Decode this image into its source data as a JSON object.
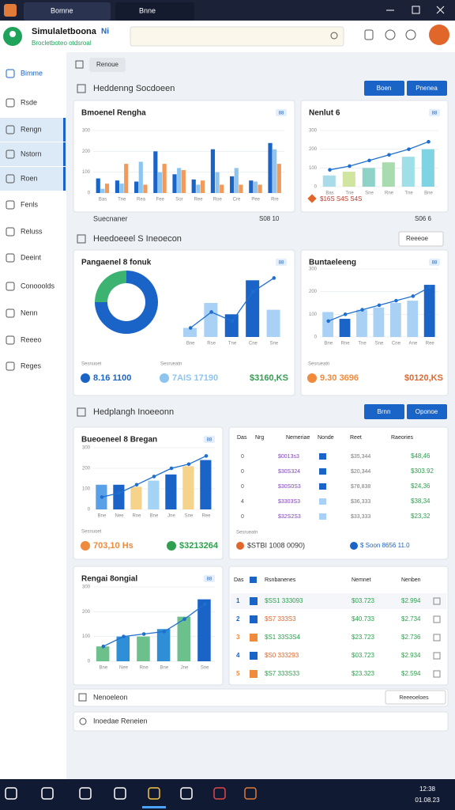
{
  "window": {
    "tabs": [
      "Bomne",
      "Bnne"
    ],
    "clock": "12:38",
    "date": "01.08.23"
  },
  "header": {
    "title": "Simulaletboona",
    "badge": "Ni",
    "subtitle": "Brocletboteo otdsroal"
  },
  "sidebar": {
    "items": [
      "Bimme",
      "Rsde",
      "Rengn",
      "Nstorn",
      "Roen",
      "Fenls",
      "Reluss",
      "Deeint",
      "Conooolds",
      "Nenn",
      "Reeeo",
      "Reges"
    ],
    "active": [
      2,
      3,
      4
    ]
  },
  "toolbar": {
    "chip": "Renoue"
  },
  "sections": [
    {
      "title": "Heddenng Socdoeen",
      "buttons": [
        "Boen",
        "Pnenea"
      ]
    },
    {
      "title": "Heedoeeel S Ineoecon",
      "dropdown": "Reeeoe"
    },
    {
      "title": "Hedplangh Inoeeonn",
      "buttons": [
        "Brnn",
        "Oponoe"
      ]
    }
  ],
  "summary_row": {
    "label": "Suecnaner",
    "mid": "S08 10",
    "right": "S06 6"
  },
  "cards": [
    {
      "title": "Bmoenel Rengha",
      "chip": "88",
      "chart": {
        "categories": [
          "Bas",
          "Tne",
          "Rea",
          "Fee",
          "Sor",
          "Ree",
          "Roe",
          "Cre",
          "Pee",
          "Rre"
        ],
        "ylim": [
          0,
          300
        ],
        "yticks": [
          0,
          100,
          200,
          300
        ],
        "series": [
          {
            "color": "#1a63c7",
            "values": [
              70,
              60,
              55,
              200,
              90,
              65,
              210,
              80,
              60,
              240
            ]
          },
          {
            "color": "#8ec5ef",
            "values": [
              20,
              45,
              150,
              100,
              120,
              40,
              100,
              120,
              55,
              210
            ]
          },
          {
            "color": "#f19a5a",
            "values": [
              45,
              140,
              40,
              140,
              110,
              60,
              40,
              40,
              40,
              140
            ]
          }
        ]
      }
    },
    {
      "title": "Nenlut 6",
      "chip": "88",
      "footer": "$16S S4S S4S",
      "chart": {
        "categories": [
          "Bas",
          "Tne",
          "Sne",
          "Rne",
          "Tne",
          "Bne"
        ],
        "ylim": [
          0,
          300
        ],
        "yticks": [
          0,
          100,
          200,
          300
        ],
        "series": [
          {
            "colors": [
              "#a9dbe8",
              "#cfe5a0",
              "#8fd3c8",
              "#a8dbae",
              "#9fe0e8",
              "#7fd4e4"
            ],
            "values": [
              60,
              80,
              100,
              130,
              160,
              200
            ]
          }
        ],
        "line": {
          "color": "#1e6fd0",
          "values": [
            90,
            110,
            140,
            170,
            200,
            240
          ]
        }
      }
    },
    {
      "title": "Pangaenel 8 fonuk",
      "chip": "88",
      "donut": {
        "values": [
          75,
          25
        ],
        "colors": [
          "#1a63c7",
          "#3cb371"
        ]
      },
      "chart": {
        "categories": [
          "Bne",
          "Rse",
          "Tne",
          "Cne",
          "Sne"
        ],
        "ylim": [
          0,
          300
        ],
        "series": [
          {
            "colors": [
              "#a9d1f5",
              "#a9d1f5",
              "#1a63c7",
              "#1a63c7",
              "#a9d1f5"
            ],
            "values": [
              40,
              150,
              100,
              250,
              120
            ]
          }
        ],
        "line": {
          "color": "#1e6fd0",
          "values": [
            40,
            110,
            70,
            200,
            260
          ]
        }
      },
      "stats": [
        {
          "caption": "Sesnuoet",
          "text": "8.16 1100",
          "color": "#1a63c7"
        },
        {
          "caption": "Sesrueatn",
          "text": "7AIS 17190",
          "color": "#8ec5ef"
        },
        {
          "text": "$3160,KS",
          "color": "#2e9e4f"
        }
      ]
    },
    {
      "title": "Buntaeleeng",
      "chip": "88",
      "chart": {
        "categories": [
          "Bne",
          "Rne",
          "Tne",
          "Sne",
          "Cne",
          "Ane",
          "Ree"
        ],
        "ylim": [
          0,
          300
        ],
        "yticks": [
          0,
          100,
          200,
          300
        ],
        "series": [
          {
            "colors": [
              "#a9d1f5",
              "#1a63c7",
              "#a9d1f5",
              "#a9d1f5",
              "#a9d1f5",
              "#a9d1f5",
              "#1a63c7"
            ],
            "values": [
              110,
              80,
              120,
              130,
              150,
              160,
              230
            ]
          }
        ],
        "line": {
          "color": "#1e6fd0",
          "values": [
            70,
            100,
            120,
            140,
            160,
            180,
            220
          ]
        }
      },
      "stats": [
        {
          "caption": "Sesrueatn",
          "text": "9.30 3696",
          "color": "#f08a3c"
        },
        {
          "text": "$0120,KS",
          "color": "#e0662a"
        }
      ]
    },
    {
      "title": "Bueoeneel 8 Bregan",
      "chip": "88",
      "chart": {
        "categories": [
          "Bne",
          "Nee",
          "Rne",
          "Bne",
          "Jne",
          "Sne",
          "Ree"
        ],
        "ylim": [
          0,
          300
        ],
        "yticks": [
          0,
          100,
          200,
          300
        ],
        "series": [
          {
            "colors": [
              "#5aa0e6",
              "#1a63c7",
              "#f5d38a",
              "#a3d3f5",
              "#1a63c7",
              "#f5d38a",
              "#1a63c7"
            ],
            "values": [
              120,
              120,
              110,
              140,
              170,
              210,
              240
            ]
          }
        ],
        "line": {
          "color": "#1e6fd0",
          "values": [
            60,
            80,
            120,
            160,
            200,
            220,
            260
          ]
        }
      },
      "stats": [
        {
          "caption": "Sesnuoet",
          "text": "703,10 Hs",
          "color": "#f08a3c"
        },
        {
          "text": "$3213264",
          "color": "#2e9e4f"
        }
      ]
    },
    {
      "title": "Rengai 8ongial",
      "chip": "88",
      "chart": {
        "categories": [
          "Bne",
          "Nee",
          "Rne",
          "Bne",
          "Jne",
          "Sne"
        ],
        "ylim": [
          0,
          300
        ],
        "yticks": [
          0,
          100,
          200,
          300
        ],
        "series": [
          {
            "colors": [
              "#6cc08b",
              "#2f8fd6",
              "#6cc08b",
              "#2f8fd6",
              "#6cc08b",
              "#1a63c7"
            ],
            "values": [
              60,
              100,
              100,
              130,
              180,
              250
            ]
          }
        ],
        "line": {
          "color": "#1e6fd0",
          "values": [
            60,
            100,
            110,
            120,
            170,
            230
          ]
        }
      }
    }
  ],
  "tables": [
    {
      "header": [
        "Das",
        "Nrg",
        "Nemeriae",
        "Nonde",
        "Reet",
        "Raeories"
      ],
      "rows": [
        {
          "cells": [
            "0",
            "$0013s3",
            "$35,344",
            "$48,46"
          ],
          "color": "#1a63c7"
        },
        {
          "cells": [
            "0",
            "$30S324",
            "$20,344",
            "$303.92"
          ],
          "color": "#1a63c7"
        },
        {
          "cells": [
            "0",
            "$30S0S3",
            "$78,838",
            "$24,36"
          ],
          "color": "#1a63c7"
        },
        {
          "cells": [
            "4",
            "$3303S3",
            "$36,333",
            "$38,34"
          ],
          "color": "#a9d1f5"
        },
        {
          "cells": [
            "0",
            "$32S2S3",
            "$33,333",
            "$23,32"
          ],
          "color": "#a9d1f5"
        }
      ],
      "footer_caption": "Sesrueatn",
      "footer": [
        "$STBI 1008 0090)",
        "$ Soon 8656 11.0"
      ]
    },
    {
      "header": [
        "Das",
        "Rsnbanenes",
        "Nemnet",
        "Nenben"
      ],
      "rows": [
        {
          "cells": [
            "1",
            "$SS1 333093",
            "$03.723",
            "$2.994"
          ],
          "color": "#1a63c7"
        },
        {
          "cells": [
            "2",
            "$S7 333S3",
            "$40.733",
            "$2.734"
          ],
          "color": "#1a63c7"
        },
        {
          "cells": [
            "3",
            "$S1 33S3S4",
            "$23.723",
            "$2.736"
          ],
          "color": "#f08a3c"
        },
        {
          "cells": [
            "4",
            "$S0 333293",
            "$03.723",
            "$2.934"
          ],
          "color": "#1a63c7"
        },
        {
          "cells": [
            "5",
            "$S7 333S33",
            "$23.323",
            "$2.594"
          ],
          "color": "#f08a3c"
        }
      ]
    }
  ],
  "bottom": {
    "row1": "Nenoeleon",
    "row1_dropdown": "Reeeoeloes",
    "row2": "Inoedae Reneien"
  }
}
